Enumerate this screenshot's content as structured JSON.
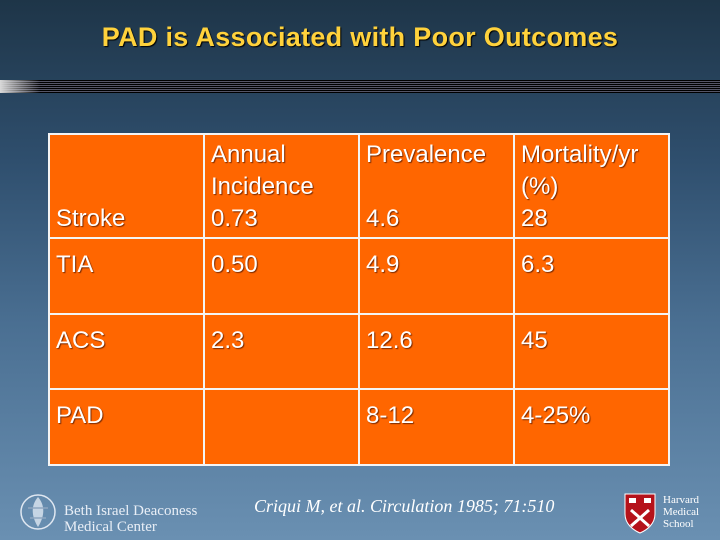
{
  "slide": {
    "title": "PAD is Associated with Poor Outcomes"
  },
  "table": {
    "headers": {
      "col1": "",
      "col2": "Annual Incidence",
      "col3": "Prevalence",
      "col4": "Mortality/yr (%)"
    },
    "rows": [
      {
        "label": "Stroke",
        "incidence": "0.73",
        "prevalence": "4.6",
        "mortality": "28"
      },
      {
        "label": "TIA",
        "incidence": "0.50",
        "prevalence": "4.9",
        "mortality": "6.3"
      },
      {
        "label": "ACS",
        "incidence": "2.3",
        "prevalence": "12.6",
        "mortality": "45"
      },
      {
        "label": "PAD",
        "incidence": "",
        "prevalence": "8-12",
        "mortality": "4-25%"
      }
    ]
  },
  "footer": {
    "citation": "Criqui M, et al.  Circulation 1985; 71:510",
    "bidmc": {
      "line1": "Beth Israel Deaconess",
      "line2": "Medical Center"
    },
    "hms": {
      "line1": "Harvard",
      "line2": "Medical",
      "line3": "School"
    }
  },
  "colors": {
    "title": "#ffd23c",
    "cell": "#ff6600",
    "background_top": "#1e3548",
    "background_bottom": "#6a90b2"
  }
}
